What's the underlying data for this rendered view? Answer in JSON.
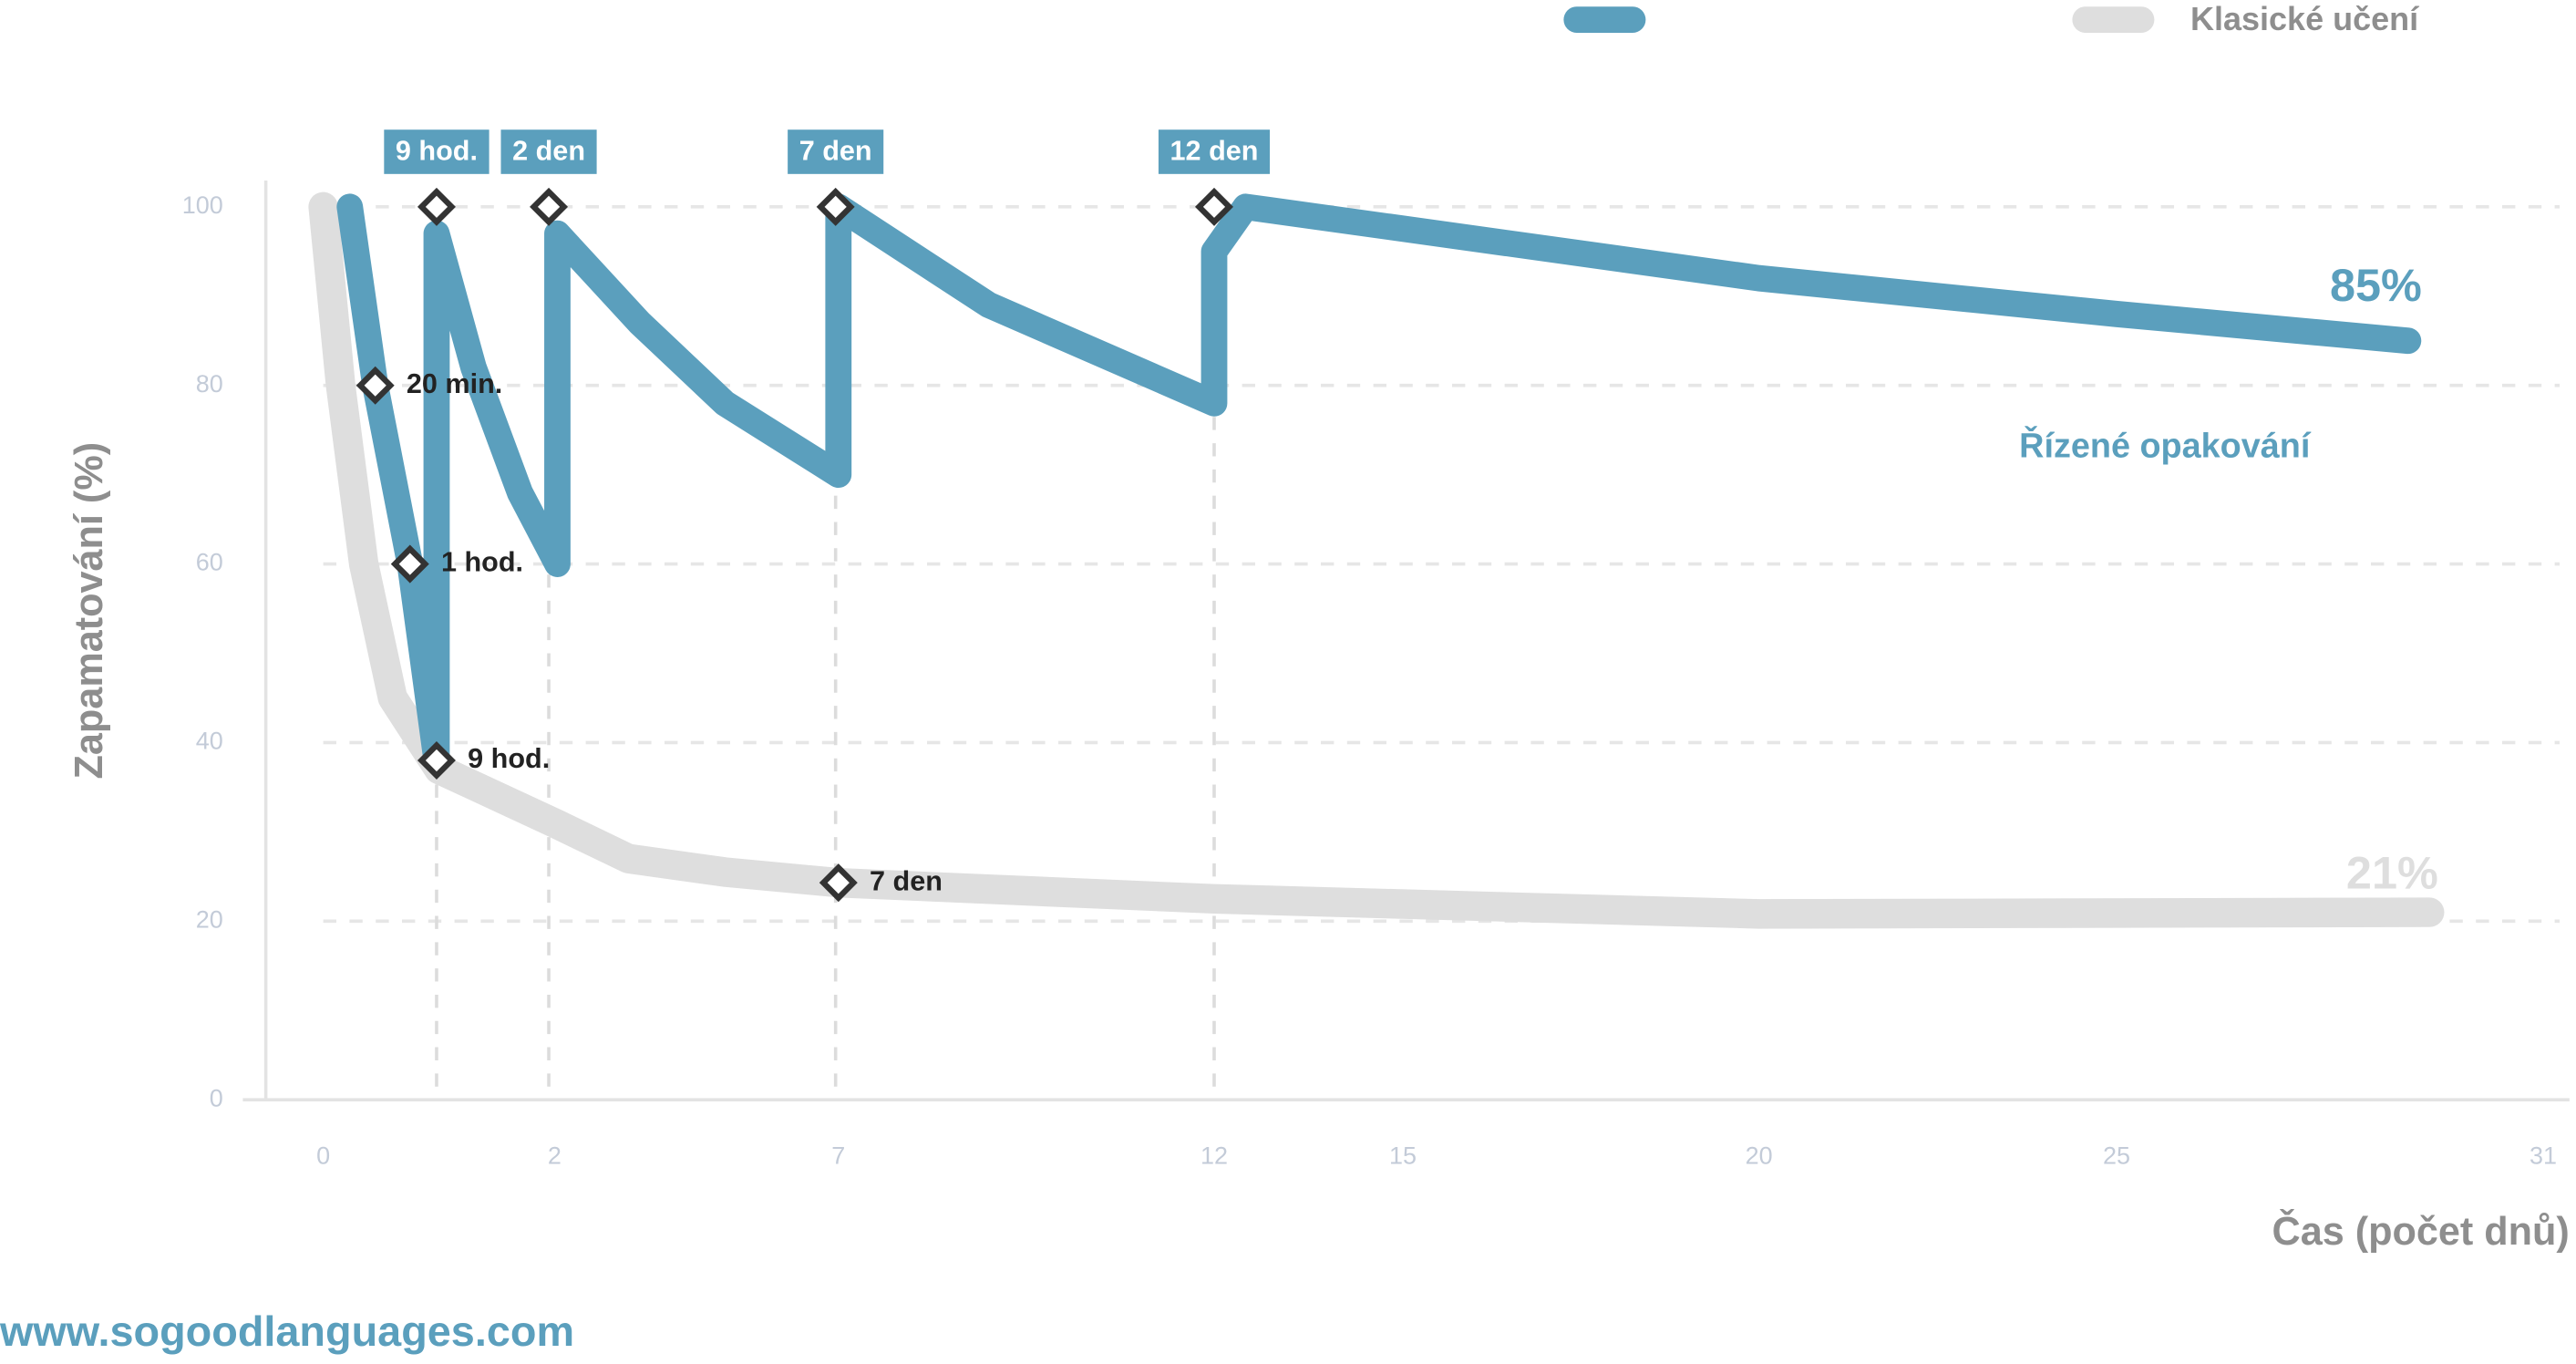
{
  "chart_data": {
    "type": "line",
    "x_label": "Čas (počet dnů)",
    "y_label": "Zapamatování (%)",
    "xlim": [
      0,
      31
    ],
    "xticks": [
      0,
      2,
      7,
      12,
      15,
      20,
      25,
      31
    ],
    "ylim": [
      0,
      100
    ],
    "yticks": [
      0,
      20,
      40,
      60,
      80,
      100
    ],
    "grid": true,
    "legend": "top-right",
    "series": [
      {
        "name": "Řízené opakování",
        "color": "#5b9fbd",
        "end_label": "85%",
        "x": [
          0.23,
          0.45,
          0.75,
          0.98,
          0.98,
          1.3,
          1.7,
          2.05,
          2.05,
          3.5,
          5,
          7,
          7,
          9,
          12,
          12,
          12.5,
          20,
          25,
          29.1
        ],
        "values": [
          100,
          80,
          60,
          38,
          97,
          82,
          68,
          60,
          97,
          87,
          78,
          70,
          100,
          89,
          78,
          95,
          100,
          92,
          88,
          85
        ]
      },
      {
        "name": "Klasické učení",
        "color": "#dedede",
        "end_label": "21%",
        "x": [
          0,
          0.15,
          0.35,
          0.6,
          1,
          2,
          3.3,
          5,
          7,
          12,
          20,
          29.4
        ],
        "values": [
          100,
          80,
          60,
          45,
          37,
          31,
          27,
          25.5,
          24.3,
          22.5,
          20.8,
          21
        ]
      }
    ],
    "annotations": [
      {
        "label": "20 min.",
        "x": 0.45,
        "y": 80
      },
      {
        "label": "1 hod.",
        "x": 0.75,
        "y": 60
      },
      {
        "label": "9 hod.",
        "x": 0.98,
        "y": 38
      },
      {
        "label": "7 den",
        "x": 7.0,
        "y": 24.3
      }
    ],
    "review_points": [
      {
        "label": "9 hod.",
        "x": 0.98,
        "y": 100
      },
      {
        "label": "2 den",
        "x": 1.95,
        "y": 100
      },
      {
        "label": "7 den",
        "x": 6.95,
        "y": 100
      },
      {
        "label": "12 den",
        "x": 12.0,
        "y": 100
      }
    ]
  },
  "footer": "www.sogoodlanguages.com"
}
